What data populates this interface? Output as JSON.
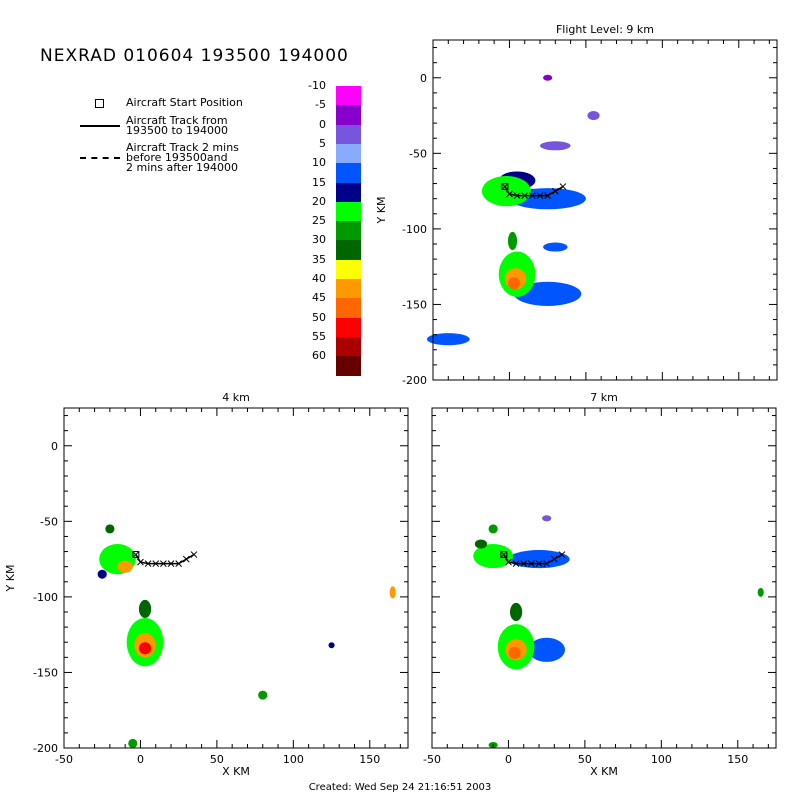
{
  "title": "NEXRAD 010604 193500 194000",
  "legend": {
    "start_label": "Aircraft Start Position",
    "track_label_1": "Aircraft Track from",
    "track_label_2": "193500 to 194000",
    "ext_label_1": "Aircraft Track 2 mins",
    "ext_label_2": "before 193500and",
    "ext_label_3": "2 mins after 194000"
  },
  "colorbar": {
    "labels": [
      "-10",
      "-5",
      "0",
      "5",
      "10",
      "15",
      "20",
      "25",
      "30",
      "35",
      "40",
      "45",
      "50",
      "55",
      "60"
    ],
    "colors": [
      "#ff00ff",
      "#8800cc",
      "#7755dd",
      "#88aaff",
      "#0055ff",
      "#000088",
      "#00ff00",
      "#009900",
      "#006600",
      "#ffff00",
      "#ff9900",
      "#ff6600",
      "#ff0000",
      "#aa0000",
      "#660000"
    ]
  },
  "footer": "Created: Wed Sep 24 21:16:51 2003",
  "chart_data": [
    {
      "type": "heatmap",
      "title": "Flight Level: 9 km",
      "xlabel": "",
      "ylabel": "Y KM",
      "xlim": [
        -50,
        175
      ],
      "ylim": [
        -200,
        25
      ],
      "yticks": [
        0,
        -50,
        -100,
        -150,
        -200
      ],
      "aircraft_track": {
        "x": [
          -3,
          0,
          5,
          10,
          15,
          20,
          25,
          30,
          35
        ],
        "y": [
          -72,
          -77,
          -78,
          -78,
          -78,
          -78,
          -78,
          -75,
          -72
        ]
      },
      "echo_cells": [
        {
          "x": -2,
          "y": -75,
          "rx": 16,
          "ry": 10,
          "level": 20
        },
        {
          "x": 25,
          "y": -80,
          "rx": 25,
          "ry": 7,
          "level": 10
        },
        {
          "x": 5,
          "y": -68,
          "rx": 12,
          "ry": 6,
          "level": 15
        },
        {
          "x": 5,
          "y": -130,
          "rx": 12,
          "ry": 15,
          "level": 20
        },
        {
          "x": 4,
          "y": -133,
          "rx": 7,
          "ry": 7,
          "level": 40
        },
        {
          "x": 3,
          "y": -136,
          "rx": 4,
          "ry": 4,
          "level": 45
        },
        {
          "x": 25,
          "y": -143,
          "rx": 22,
          "ry": 8,
          "level": 10
        },
        {
          "x": 2,
          "y": -108,
          "rx": 3,
          "ry": 6,
          "level": 25
        },
        {
          "x": 30,
          "y": -45,
          "rx": 10,
          "ry": 3,
          "level": 0
        },
        {
          "x": 55,
          "y": -25,
          "rx": 4,
          "ry": 3,
          "level": 0
        },
        {
          "x": 25,
          "y": 0,
          "rx": 3,
          "ry": 2,
          "level": -5
        },
        {
          "x": -40,
          "y": -173,
          "rx": 14,
          "ry": 4,
          "level": 10
        },
        {
          "x": 30,
          "y": -112,
          "rx": 8,
          "ry": 3,
          "level": 10
        }
      ]
    },
    {
      "type": "heatmap",
      "title": "4 km",
      "xlabel": "X KM",
      "ylabel": "Y KM",
      "xlim": [
        -50,
        175
      ],
      "ylim": [
        -200,
        25
      ],
      "xticks": [
        -50,
        0,
        50,
        100,
        150
      ],
      "yticks": [
        0,
        -50,
        -100,
        -150,
        -200
      ],
      "aircraft_track": {
        "x": [
          -3,
          0,
          5,
          10,
          15,
          20,
          25,
          30,
          35
        ],
        "y": [
          -72,
          -77,
          -78,
          -78,
          -78,
          -78,
          -78,
          -75,
          -72
        ]
      },
      "echo_cells": [
        {
          "x": -15,
          "y": -75,
          "rx": 12,
          "ry": 10,
          "level": 20
        },
        {
          "x": -10,
          "y": -80,
          "rx": 5,
          "ry": 4,
          "level": 40
        },
        {
          "x": 3,
          "y": -130,
          "rx": 12,
          "ry": 16,
          "level": 20
        },
        {
          "x": 3,
          "y": -132,
          "rx": 7,
          "ry": 8,
          "level": 40
        },
        {
          "x": 3,
          "y": -134,
          "rx": 4,
          "ry": 4,
          "level": 50
        },
        {
          "x": 3,
          "y": -108,
          "rx": 4,
          "ry": 6,
          "level": 30
        },
        {
          "x": -25,
          "y": -85,
          "rx": 3,
          "ry": 3,
          "level": 15
        },
        {
          "x": 165,
          "y": -97,
          "rx": 2,
          "ry": 4,
          "level": 40
        },
        {
          "x": 125,
          "y": -132,
          "rx": 2,
          "ry": 2,
          "level": 15
        },
        {
          "x": 80,
          "y": -165,
          "rx": 3,
          "ry": 3,
          "level": 25
        },
        {
          "x": -5,
          "y": -197,
          "rx": 3,
          "ry": 3,
          "level": 25
        },
        {
          "x": -20,
          "y": -55,
          "rx": 3,
          "ry": 3,
          "level": 30
        }
      ]
    },
    {
      "type": "heatmap",
      "title": "7 km",
      "xlabel": "X KM",
      "ylabel": "",
      "xlim": [
        -50,
        175
      ],
      "ylim": [
        -200,
        25
      ],
      "xticks": [
        -50,
        0,
        50,
        100,
        150
      ],
      "aircraft_track": {
        "x": [
          -3,
          0,
          5,
          10,
          15,
          20,
          25,
          30,
          35
        ],
        "y": [
          -72,
          -77,
          -78,
          -78,
          -78,
          -78,
          -78,
          -75,
          -72
        ]
      },
      "echo_cells": [
        {
          "x": -10,
          "y": -73,
          "rx": 13,
          "ry": 8,
          "level": 20
        },
        {
          "x": -18,
          "y": -65,
          "rx": 4,
          "ry": 3,
          "level": 30
        },
        {
          "x": 20,
          "y": -75,
          "rx": 20,
          "ry": 6,
          "level": 10
        },
        {
          "x": 5,
          "y": -133,
          "rx": 12,
          "ry": 15,
          "level": 20
        },
        {
          "x": 5,
          "y": -135,
          "rx": 7,
          "ry": 7,
          "level": 40
        },
        {
          "x": 4,
          "y": -137,
          "rx": 4,
          "ry": 4,
          "level": 45
        },
        {
          "x": 25,
          "y": -135,
          "rx": 12,
          "ry": 8,
          "level": 10
        },
        {
          "x": 5,
          "y": -110,
          "rx": 4,
          "ry": 6,
          "level": 30
        },
        {
          "x": -10,
          "y": -55,
          "rx": 3,
          "ry": 3,
          "level": 25
        },
        {
          "x": -10,
          "y": -198,
          "rx": 3,
          "ry": 2,
          "level": 25
        },
        {
          "x": 165,
          "y": -97,
          "rx": 2,
          "ry": 3,
          "level": 25
        },
        {
          "x": 25,
          "y": -48,
          "rx": 3,
          "ry": 2,
          "level": 0
        }
      ]
    }
  ]
}
